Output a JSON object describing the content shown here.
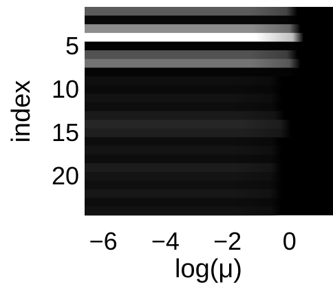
{
  "chart_data": {
    "type": "heatmap",
    "title": "",
    "xlabel": "log(μ)",
    "ylabel": "index",
    "xlim": [
      -6.6,
      1.4
    ],
    "ylim": [
      24.5,
      0.5
    ],
    "xticks": [
      -6,
      -4,
      -2,
      0
    ],
    "xtick_labels": [
      "−6",
      "−4",
      "−2",
      "0"
    ],
    "yticks": [
      5,
      10,
      15,
      20
    ],
    "ytick_labels": [
      "5",
      "10",
      "15",
      "20"
    ],
    "colormap": "gray",
    "grid": false,
    "rows": [
      {
        "index": 1,
        "level": 0.36,
        "cutoff": -0.1
      },
      {
        "index": 2,
        "level": 0.03,
        "cutoff": -0.1
      },
      {
        "index": 3,
        "level": 0.55,
        "cutoff": 0.0
      },
      {
        "index": 4,
        "level": 1.0,
        "cutoff": 0.1
      },
      {
        "index": 5,
        "level": 0.01,
        "cutoff": 0.0
      },
      {
        "index": 6,
        "level": 0.32,
        "cutoff": -0.1
      },
      {
        "index": 7,
        "level": 0.45,
        "cutoff": 0.0
      },
      {
        "index": 8,
        "level": 0.02,
        "cutoff": 0.0
      },
      {
        "index": 9,
        "level": 0.06,
        "cutoff": -0.6
      },
      {
        "index": 10,
        "level": 0.04,
        "cutoff": -0.6
      },
      {
        "index": 11,
        "level": 0.07,
        "cutoff": -0.6
      },
      {
        "index": 12,
        "level": 0.05,
        "cutoff": -0.6
      },
      {
        "index": 13,
        "level": 0.1,
        "cutoff": -0.5
      },
      {
        "index": 14,
        "level": 0.15,
        "cutoff": -0.3
      },
      {
        "index": 15,
        "level": 0.12,
        "cutoff": -0.3
      },
      {
        "index": 16,
        "level": 0.05,
        "cutoff": -0.6
      },
      {
        "index": 17,
        "level": 0.08,
        "cutoff": -0.6
      },
      {
        "index": 18,
        "level": 0.05,
        "cutoff": -0.6
      },
      {
        "index": 19,
        "level": 0.11,
        "cutoff": -0.6
      },
      {
        "index": 20,
        "level": 0.08,
        "cutoff": -0.6
      },
      {
        "index": 21,
        "level": 0.06,
        "cutoff": -0.6
      },
      {
        "index": 22,
        "level": 0.09,
        "cutoff": -0.6
      },
      {
        "index": 23,
        "level": 0.05,
        "cutoff": -0.6
      },
      {
        "index": 24,
        "level": 0.07,
        "cutoff": -0.6
      }
    ]
  }
}
